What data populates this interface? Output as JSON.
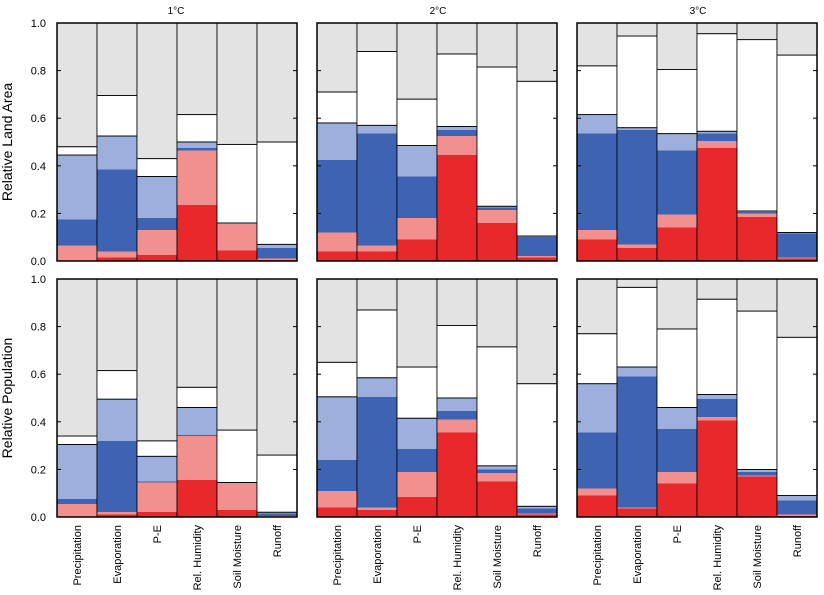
{
  "colors": {
    "unaffected": "#e3e3e3",
    "dark_blue": "#3f63b3",
    "light_blue": "#9db0dd",
    "dark_red": "#e8282b",
    "light_red": "#f2908f",
    "white": "#ffffff"
  },
  "chart_data": {
    "type": "bar",
    "stacked": true,
    "categories": [
      "Precipitation",
      "Evaporation",
      "P-E",
      "Rel. Humidity",
      "Soil Moisture",
      "Runoff"
    ],
    "columns": [
      "1°C",
      "2°C",
      "3°C"
    ],
    "row_labels": [
      "Relative Land Area",
      "Relative Population"
    ],
    "ylim": [
      0,
      1
    ],
    "yticks": [
      "0.0",
      "0.2",
      "0.4",
      "0.6",
      "0.8",
      "1.0"
    ],
    "segment_order": [
      "dark_red",
      "light_red",
      "dark_blue",
      "light_blue",
      "white",
      "unaffected"
    ],
    "panels": [
      {
        "row": 0,
        "col": 0,
        "bars": [
          {
            "dark_red": 0.0,
            "light_red_top": 0.065,
            "dark_blue_top": 0.175,
            "light_blue_top": 0.445,
            "white_top": 0.48
          },
          {
            "dark_red": 0.015,
            "light_red_top": 0.04,
            "dark_blue_top": 0.385,
            "light_blue_top": 0.525,
            "white_top": 0.695
          },
          {
            "dark_red": 0.025,
            "light_red_top": 0.13,
            "dark_blue_top": 0.18,
            "light_blue_top": 0.355,
            "white_top": 0.43
          },
          {
            "dark_red": 0.235,
            "light_red_top": 0.465,
            "dark_blue_top": 0.475,
            "light_blue_top": 0.5,
            "white_top": 0.615
          },
          {
            "dark_red": 0.045,
            "light_red_top": 0.155,
            "dark_blue_top": 0.155,
            "light_blue_top": 0.16,
            "white_top": 0.49
          },
          {
            "dark_red": 0.005,
            "light_red_top": 0.01,
            "dark_blue_top": 0.055,
            "light_blue_top": 0.07,
            "white_top": 0.5
          }
        ]
      },
      {
        "row": 0,
        "col": 1,
        "bars": [
          {
            "dark_red": 0.04,
            "light_red_top": 0.12,
            "dark_blue_top": 0.425,
            "light_blue_top": 0.58,
            "white_top": 0.71
          },
          {
            "dark_red": 0.04,
            "light_red_top": 0.065,
            "dark_blue_top": 0.535,
            "light_blue_top": 0.57,
            "white_top": 0.88
          },
          {
            "dark_red": 0.09,
            "light_red_top": 0.18,
            "dark_blue_top": 0.355,
            "light_blue_top": 0.485,
            "white_top": 0.68
          },
          {
            "dark_red": 0.445,
            "light_red_top": 0.525,
            "dark_blue_top": 0.55,
            "light_blue_top": 0.565,
            "white_top": 0.87
          },
          {
            "dark_red": 0.16,
            "light_red_top": 0.215,
            "dark_blue_top": 0.225,
            "light_blue_top": 0.23,
            "white_top": 0.815
          },
          {
            "dark_red": 0.015,
            "light_red_top": 0.02,
            "dark_blue_top": 0.1,
            "light_blue_top": 0.105,
            "white_top": 0.755
          }
        ]
      },
      {
        "row": 0,
        "col": 2,
        "bars": [
          {
            "dark_red": 0.09,
            "light_red_top": 0.13,
            "dark_blue_top": 0.535,
            "light_blue_top": 0.615,
            "white_top": 0.82
          },
          {
            "dark_red": 0.055,
            "light_red_top": 0.07,
            "dark_blue_top": 0.55,
            "light_blue_top": 0.56,
            "white_top": 0.945
          },
          {
            "dark_red": 0.14,
            "light_red_top": 0.195,
            "dark_blue_top": 0.465,
            "light_blue_top": 0.535,
            "white_top": 0.805
          },
          {
            "dark_red": 0.475,
            "light_red_top": 0.505,
            "dark_blue_top": 0.535,
            "light_blue_top": 0.545,
            "white_top": 0.955
          },
          {
            "dark_red": 0.185,
            "light_red_top": 0.2,
            "dark_blue_top": 0.205,
            "light_blue_top": 0.21,
            "white_top": 0.93
          },
          {
            "dark_red": 0.01,
            "light_red_top": 0.015,
            "dark_blue_top": 0.115,
            "light_blue_top": 0.12,
            "white_top": 0.865
          }
        ]
      },
      {
        "row": 1,
        "col": 0,
        "bars": [
          {
            "dark_red": 0.0,
            "light_red_top": 0.055,
            "dark_blue_top": 0.075,
            "light_blue_top": 0.305,
            "white_top": 0.34
          },
          {
            "dark_red": 0.01,
            "light_red_top": 0.02,
            "dark_blue_top": 0.32,
            "light_blue_top": 0.495,
            "white_top": 0.615
          },
          {
            "dark_red": 0.02,
            "light_red_top": 0.145,
            "dark_blue_top": 0.15,
            "light_blue_top": 0.255,
            "white_top": 0.32
          },
          {
            "dark_red": 0.155,
            "light_red_top": 0.34,
            "dark_blue_top": 0.345,
            "light_blue_top": 0.46,
            "white_top": 0.545
          },
          {
            "dark_red": 0.03,
            "light_red_top": 0.14,
            "dark_blue_top": 0.14,
            "light_blue_top": 0.145,
            "white_top": 0.365
          },
          {
            "dark_red": 0.0,
            "light_red_top": 0.005,
            "dark_blue_top": 0.015,
            "light_blue_top": 0.02,
            "white_top": 0.26
          }
        ]
      },
      {
        "row": 1,
        "col": 1,
        "bars": [
          {
            "dark_red": 0.04,
            "light_red_top": 0.11,
            "dark_blue_top": 0.24,
            "light_blue_top": 0.505,
            "white_top": 0.65
          },
          {
            "dark_red": 0.03,
            "light_red_top": 0.04,
            "dark_blue_top": 0.505,
            "light_blue_top": 0.585,
            "white_top": 0.87
          },
          {
            "dark_red": 0.085,
            "light_red_top": 0.19,
            "dark_blue_top": 0.285,
            "light_blue_top": 0.415,
            "white_top": 0.63
          },
          {
            "dark_red": 0.355,
            "light_red_top": 0.41,
            "dark_blue_top": 0.445,
            "light_blue_top": 0.5,
            "white_top": 0.805
          },
          {
            "dark_red": 0.15,
            "light_red_top": 0.185,
            "dark_blue_top": 0.2,
            "light_blue_top": 0.215,
            "white_top": 0.715
          },
          {
            "dark_red": 0.01,
            "light_red_top": 0.015,
            "dark_blue_top": 0.035,
            "light_blue_top": 0.045,
            "white_top": 0.56
          }
        ]
      },
      {
        "row": 1,
        "col": 2,
        "bars": [
          {
            "dark_red": 0.09,
            "light_red_top": 0.12,
            "dark_blue_top": 0.355,
            "light_blue_top": 0.56,
            "white_top": 0.77
          },
          {
            "dark_red": 0.035,
            "light_red_top": 0.04,
            "dark_blue_top": 0.59,
            "light_blue_top": 0.63,
            "white_top": 0.965
          },
          {
            "dark_red": 0.14,
            "light_red_top": 0.19,
            "dark_blue_top": 0.37,
            "light_blue_top": 0.46,
            "white_top": 0.79
          },
          {
            "dark_red": 0.405,
            "light_red_top": 0.42,
            "dark_blue_top": 0.495,
            "light_blue_top": 0.515,
            "white_top": 0.915
          },
          {
            "dark_red": 0.17,
            "light_red_top": 0.175,
            "dark_blue_top": 0.19,
            "light_blue_top": 0.2,
            "white_top": 0.865
          },
          {
            "dark_red": 0.005,
            "light_red_top": 0.01,
            "dark_blue_top": 0.07,
            "light_blue_top": 0.09,
            "white_top": 0.755
          }
        ]
      }
    ]
  }
}
